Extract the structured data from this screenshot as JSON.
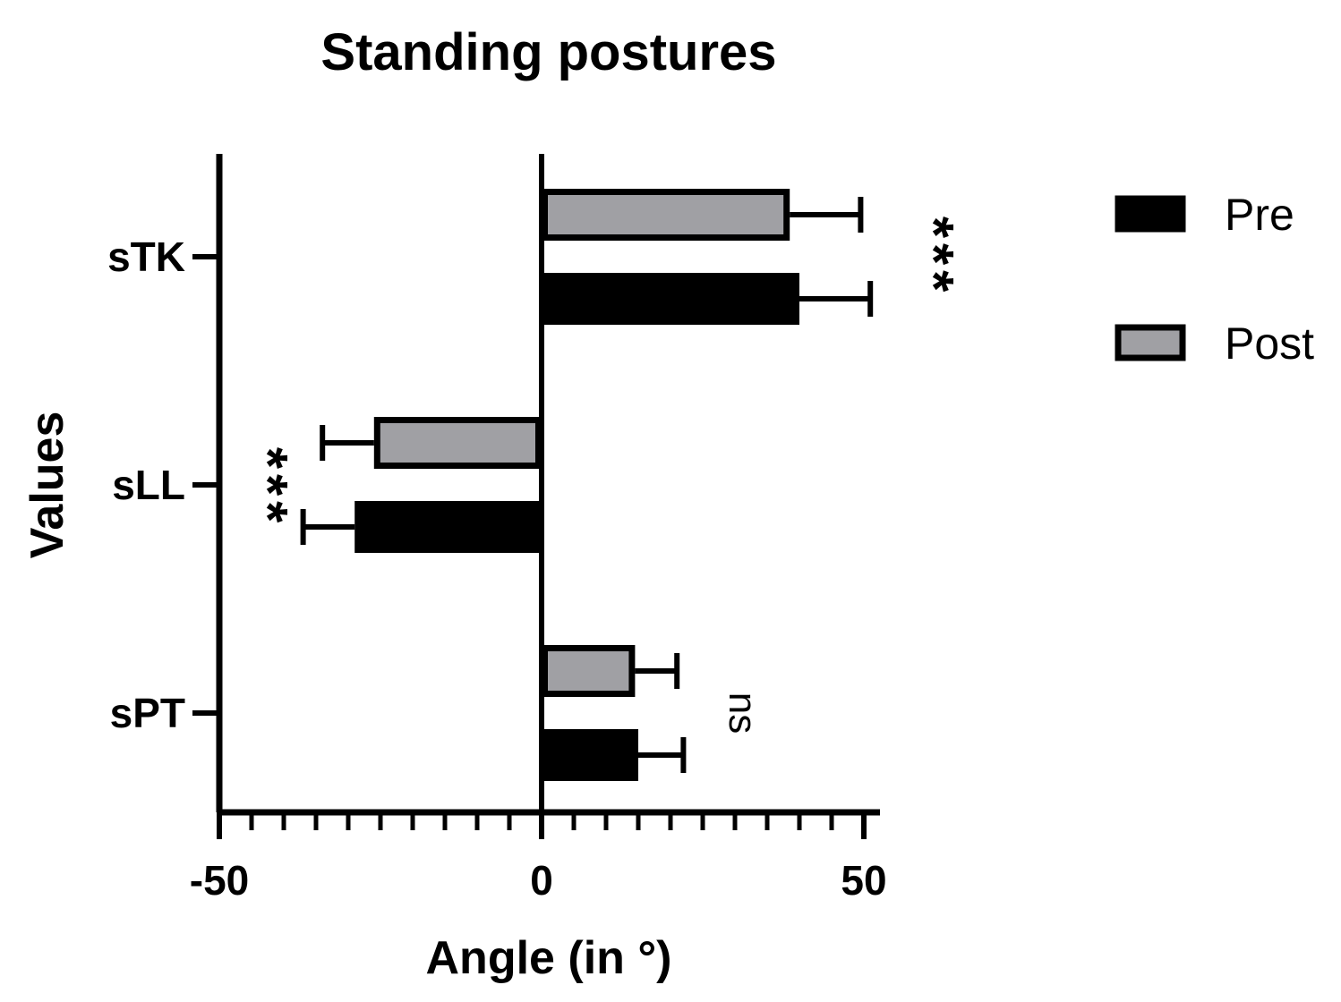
{
  "chart_data": {
    "type": "bar",
    "orientation": "horizontal",
    "title": "Standing postures",
    "xlabel": "Angle (in °)",
    "ylabel": "Values",
    "xlim": [
      -50,
      52
    ],
    "xticks": [
      -50,
      0,
      50
    ],
    "xtick_labels": [
      "-50",
      "0",
      "50"
    ],
    "categories": [
      "sTK",
      "sLL",
      "sPT"
    ],
    "series": [
      {
        "name": "Pre",
        "color": "#000000",
        "values": [
          40,
          -29,
          15
        ],
        "errors": [
          11,
          8,
          7
        ]
      },
      {
        "name": "Post",
        "color": "#a0a0a4",
        "values": [
          38.5,
          -26,
          14.5
        ],
        "errors": [
          11,
          8,
          6.5
        ]
      }
    ],
    "annotations": [
      {
        "category": "sTK",
        "text": "***"
      },
      {
        "category": "sLL",
        "text": "***"
      },
      {
        "category": "sPT",
        "text": "ns"
      }
    ],
    "legend": {
      "position": "right",
      "entries": [
        "Pre",
        "Post"
      ]
    },
    "grid": false
  }
}
